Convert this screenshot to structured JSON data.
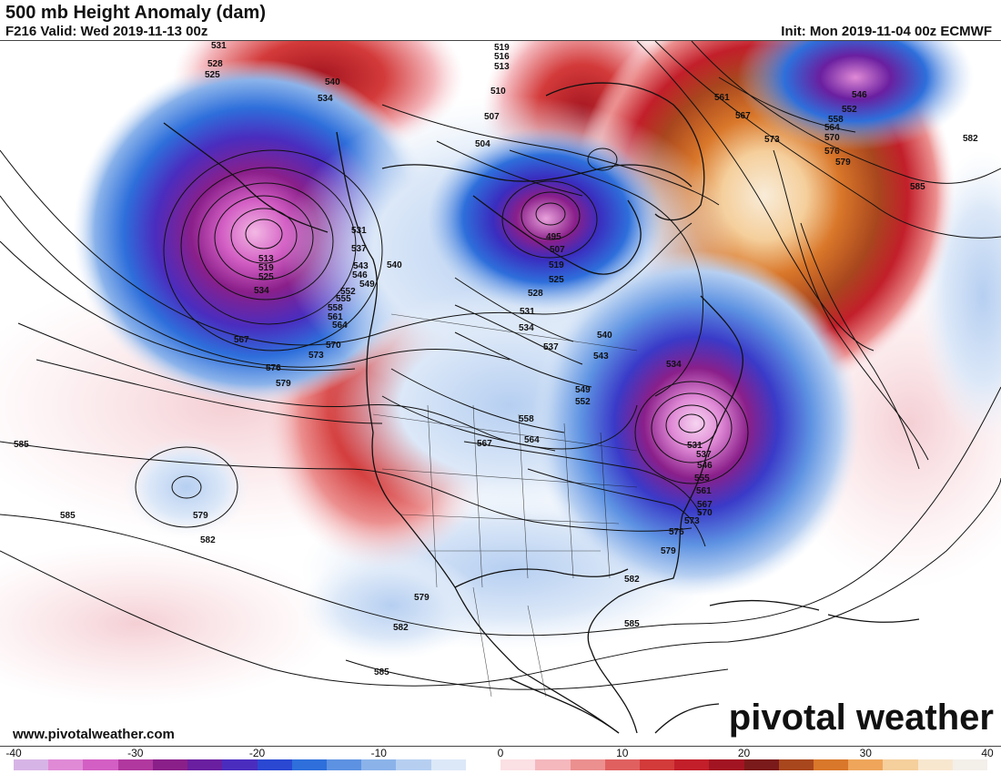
{
  "header": {
    "title": "500 mb Height Anomaly (dam)",
    "valid": "F216 Valid: Wed 2019-11-13 00z",
    "init": "Init: Mon 2019-11-04 00z ECMWF"
  },
  "footer": {
    "website": "www.pivotalweather.com",
    "brand": "pivotal weather"
  },
  "colorbar": {
    "ticks": [
      "-40",
      "-30",
      "-20",
      "-10",
      "0",
      "10",
      "20",
      "30",
      "40"
    ],
    "colors": [
      "#d7b4e6",
      "#e08ad6",
      "#d35fc4",
      "#b1389f",
      "#8a1f8a",
      "#6a1fa0",
      "#4a2dbf",
      "#2a48d2",
      "#2e6fdb",
      "#5d92e2",
      "#8bb3ea",
      "#b6cff1",
      "#dce8f8",
      "#ffffff",
      "#fbe0e4",
      "#f4b8bd",
      "#ec8f8f",
      "#e06060",
      "#d33a3a",
      "#c21f2a",
      "#a31422",
      "#7a1a1a",
      "#a8461e",
      "#d9772a",
      "#efa55a",
      "#f5cf9c",
      "#f8e7cf",
      "#f3efe9"
    ]
  },
  "contour_labels": [
    "531",
    "528",
    "525",
    "540",
    "534",
    "519",
    "516",
    "513",
    "510",
    "507",
    "504",
    "561",
    "567",
    "573",
    "564",
    "558",
    "552",
    "546",
    "570",
    "576",
    "582",
    "579",
    "585",
    "513",
    "519",
    "525",
    "534",
    "531",
    "537",
    "543",
    "546",
    "549",
    "552",
    "555",
    "558",
    "561",
    "564",
    "567",
    "570",
    "573",
    "576",
    "579",
    "540",
    "495",
    "507",
    "519",
    "525",
    "528",
    "531",
    "534",
    "537",
    "540",
    "543",
    "549",
    "552",
    "558",
    "564",
    "567",
    "534",
    "531",
    "537",
    "546",
    "555",
    "561",
    "567",
    "570",
    "573",
    "576",
    "579",
    "582",
    "585",
    "585",
    "585",
    "579",
    "582",
    "585",
    "579",
    "582",
    "585"
  ]
}
